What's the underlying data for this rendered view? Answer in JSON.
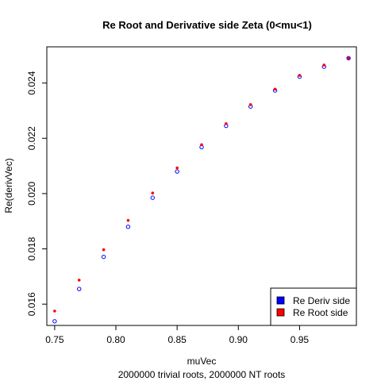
{
  "chart_data": {
    "type": "scatter",
    "title": "Re Root and Derivative side Zeta (0<mu<1)",
    "xlabel": "muVec",
    "ylabel": "Re(derivVec)",
    "subtitle": "2000000 trivial roots, 2000000 NT roots",
    "xlim": [
      0.7436,
      0.9964
    ],
    "ylim": [
      0.01523,
      0.02531
    ],
    "x_ticks": [
      0.75,
      0.8,
      0.85,
      0.9,
      0.95
    ],
    "x_tick_labels": [
      "0.75",
      "0.80",
      "0.85",
      "0.90",
      "0.95"
    ],
    "y_ticks": [
      0.016,
      0.018,
      0.02,
      0.022,
      0.024
    ],
    "y_tick_labels": [
      "0.016",
      "0.018",
      "0.020",
      "0.022",
      "0.024"
    ],
    "grid": false,
    "legend_position": "bottom-right",
    "series": [
      {
        "name": "Re Deriv side",
        "color": "#0000ff",
        "marker": "open-circle",
        "x": [
          0.75,
          0.77,
          0.79,
          0.81,
          0.83,
          0.85,
          0.87,
          0.89,
          0.91,
          0.93,
          0.95,
          0.97,
          0.99
        ],
        "y": [
          0.01538,
          0.01655,
          0.01771,
          0.0188,
          0.01985,
          0.0208,
          0.02168,
          0.02245,
          0.02315,
          0.02373,
          0.02423,
          0.02459,
          0.0249
        ]
      },
      {
        "name": "Re Root side",
        "color": "#ff0000",
        "marker": "filled-circle",
        "x": [
          0.75,
          0.77,
          0.79,
          0.81,
          0.83,
          0.85,
          0.87,
          0.89,
          0.91,
          0.93,
          0.95,
          0.97,
          0.99
        ],
        "y": [
          0.01575,
          0.01687,
          0.01797,
          0.01903,
          0.02002,
          0.02093,
          0.02177,
          0.02253,
          0.02322,
          0.02378,
          0.02428,
          0.02465,
          0.0249
        ]
      }
    ]
  }
}
